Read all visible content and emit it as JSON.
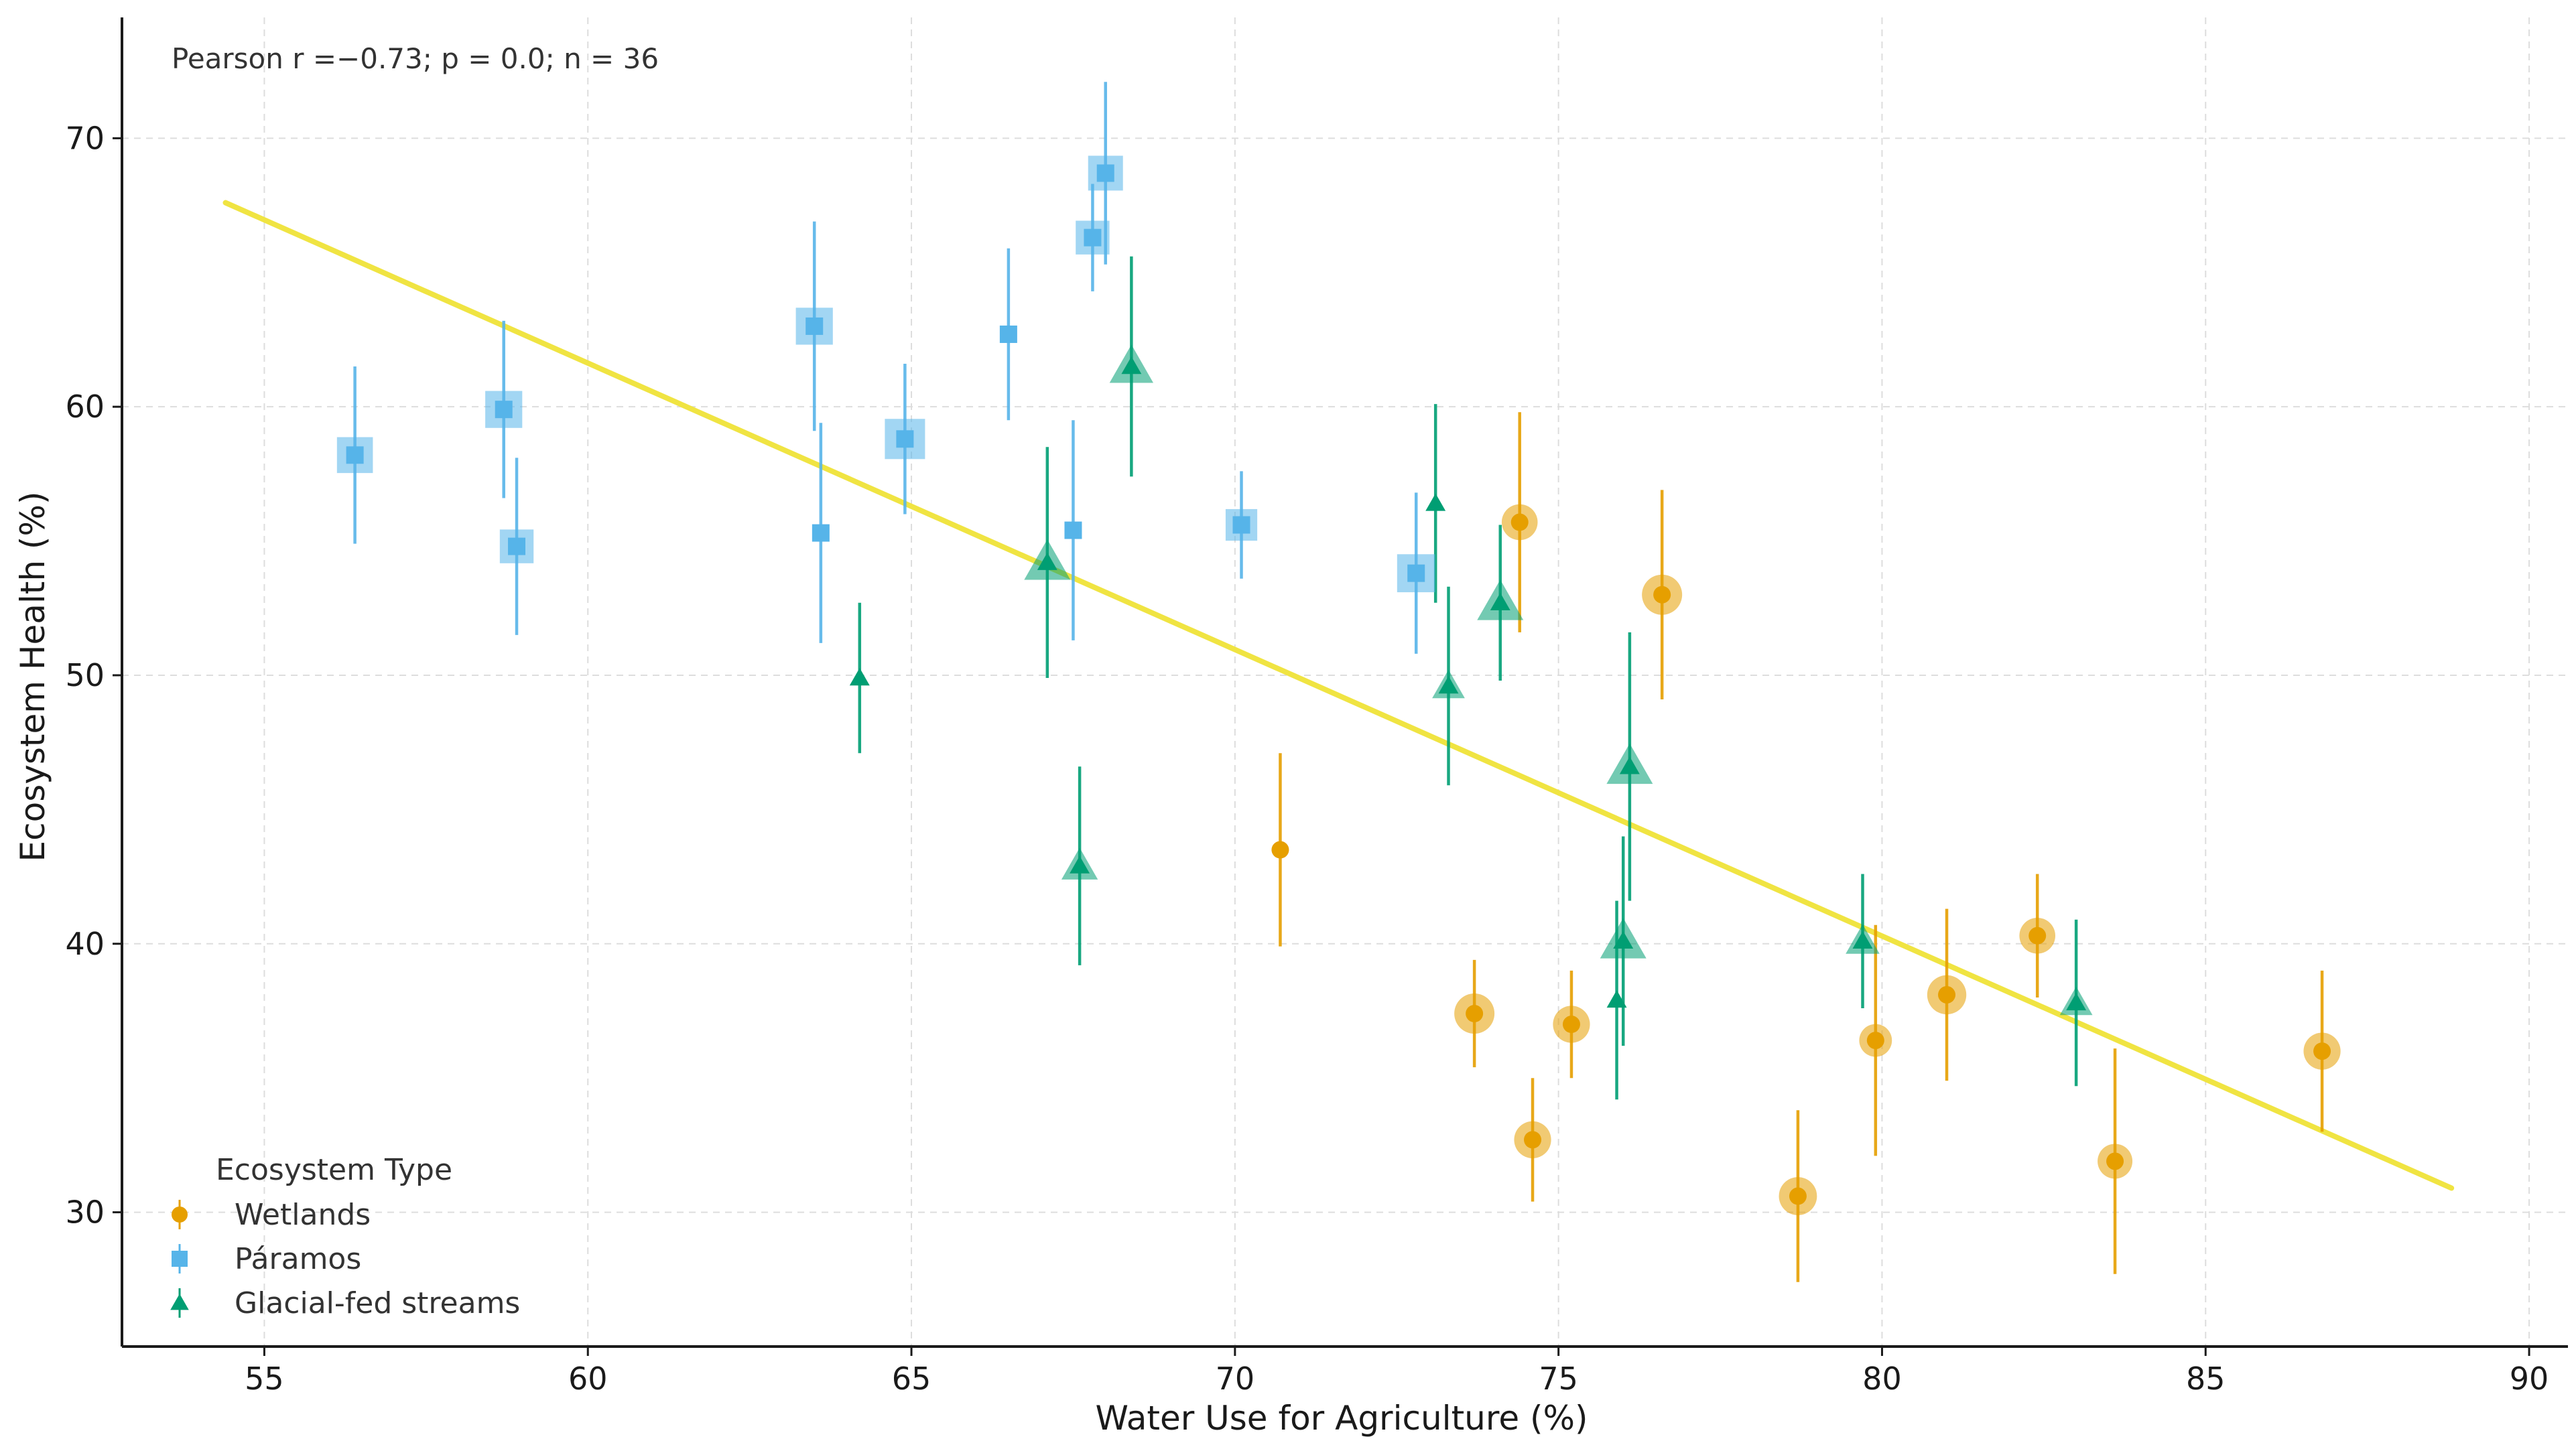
{
  "chart_data": {
    "type": "scatter",
    "title": "",
    "xlabel": "Water Use for Agriculture (%)",
    "ylabel": "Ecosystem Health (%)",
    "xlim": [
      52.8,
      90.6
    ],
    "ylim": [
      25.0,
      74.5
    ],
    "xticks": [
      55,
      60,
      65,
      70,
      75,
      80,
      85,
      90
    ],
    "yticks": [
      30,
      40,
      50,
      60,
      70
    ],
    "grid": true,
    "annotation": "Pearson r =−0.73; p = 0.0; n = 36",
    "legend": {
      "title": "Ecosystem Type",
      "placement": "lower-left"
    },
    "fit_line": {
      "color": "#f0e442",
      "x": [
        54.4,
        88.8
      ],
      "y": [
        67.6,
        30.9
      ]
    },
    "series": [
      {
        "name": "Wetlands",
        "marker": "circle",
        "color": "#e69f00",
        "points": [
          {
            "x": 70.7,
            "y": 43.5,
            "err": 3.6,
            "size": 0.3
          },
          {
            "x": 73.7,
            "y": 37.4,
            "err": 2.0,
            "size": 1.0
          },
          {
            "x": 74.4,
            "y": 55.7,
            "err": 4.1,
            "size": 0.8
          },
          {
            "x": 74.6,
            "y": 32.7,
            "err": 2.3,
            "size": 0.85
          },
          {
            "x": 75.2,
            "y": 37.0,
            "err": 2.0,
            "size": 0.85
          },
          {
            "x": 76.6,
            "y": 53.0,
            "err": 3.9,
            "size": 1.0
          },
          {
            "x": 78.7,
            "y": 30.6,
            "err": 3.2,
            "size": 0.9
          },
          {
            "x": 79.9,
            "y": 36.4,
            "err": 4.3,
            "size": 0.65
          },
          {
            "x": 81.0,
            "y": 38.1,
            "err": 3.2,
            "size": 0.95
          },
          {
            "x": 82.4,
            "y": 40.3,
            "err": 2.3,
            "size": 0.8
          },
          {
            "x": 83.6,
            "y": 31.9,
            "err": 4.2,
            "size": 0.75
          },
          {
            "x": 86.8,
            "y": 36.0,
            "err": 3.0,
            "size": 0.85
          }
        ]
      },
      {
        "name": "Páramos",
        "marker": "square",
        "color": "#56b4e9",
        "points": [
          {
            "x": 56.4,
            "y": 58.2,
            "err": 3.3,
            "size": 0.8
          },
          {
            "x": 58.7,
            "y": 59.9,
            "err": 3.3,
            "size": 0.85
          },
          {
            "x": 58.9,
            "y": 54.8,
            "err": 3.3,
            "size": 0.7
          },
          {
            "x": 63.5,
            "y": 63.0,
            "err": 3.9,
            "size": 0.85
          },
          {
            "x": 63.6,
            "y": 55.3,
            "err": 4.1,
            "size": 0.25
          },
          {
            "x": 64.9,
            "y": 58.8,
            "err": 2.8,
            "size": 1.0
          },
          {
            "x": 66.5,
            "y": 62.7,
            "err": 3.2,
            "size": 0.3
          },
          {
            "x": 67.5,
            "y": 55.4,
            "err": 4.1,
            "size": 0.25
          },
          {
            "x": 67.8,
            "y": 66.3,
            "err": 2.0,
            "size": 0.7
          },
          {
            "x": 68.0,
            "y": 68.7,
            "err": 3.4,
            "size": 0.75
          },
          {
            "x": 70.1,
            "y": 55.6,
            "err": 2.0,
            "size": 0.6
          },
          {
            "x": 72.8,
            "y": 53.8,
            "err": 3.0,
            "size": 0.9
          }
        ]
      },
      {
        "name": "Glacial-fed streams",
        "marker": "triangle",
        "color": "#009e73",
        "points": [
          {
            "x": 64.2,
            "y": 49.9,
            "err": 2.8,
            "size": 0.3
          },
          {
            "x": 67.1,
            "y": 54.2,
            "err": 4.3,
            "size": 1.0
          },
          {
            "x": 67.6,
            "y": 42.9,
            "err": 3.7,
            "size": 0.6
          },
          {
            "x": 68.4,
            "y": 61.5,
            "err": 4.1,
            "size": 0.9
          },
          {
            "x": 73.1,
            "y": 56.4,
            "err": 3.7,
            "size": 0.2
          },
          {
            "x": 73.3,
            "y": 49.6,
            "err": 3.7,
            "size": 0.45
          },
          {
            "x": 74.1,
            "y": 52.7,
            "err": 2.9,
            "size": 1.0
          },
          {
            "x": 75.9,
            "y": 37.9,
            "err": 3.7,
            "size": 0.25
          },
          {
            "x": 76.0,
            "y": 40.1,
            "err": 3.9,
            "size": 1.0
          },
          {
            "x": 76.1,
            "y": 46.6,
            "err": 5.0,
            "size": 1.0
          },
          {
            "x": 79.7,
            "y": 40.1,
            "err": 2.5,
            "size": 0.5
          },
          {
            "x": 83.0,
            "y": 37.8,
            "err": 3.1,
            "size": 0.45
          }
        ]
      }
    ]
  }
}
